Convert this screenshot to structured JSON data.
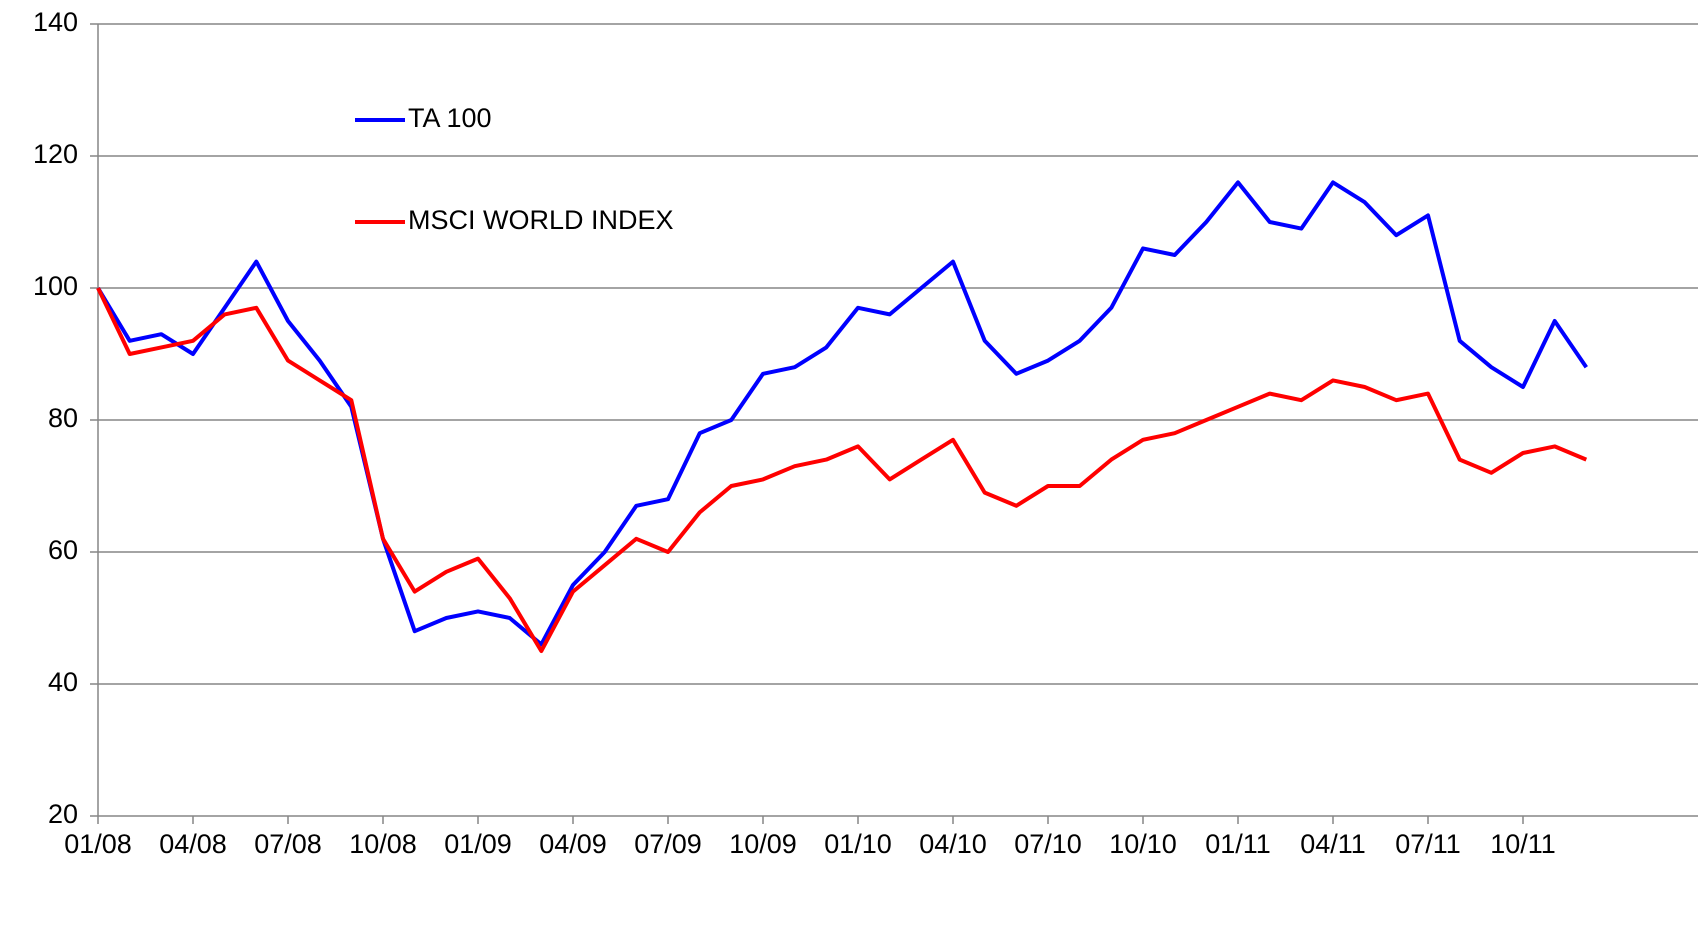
{
  "chart_data": {
    "type": "line",
    "x": [
      "01/08",
      "02/08",
      "03/08",
      "04/08",
      "05/08",
      "06/08",
      "07/08",
      "08/08",
      "09/08",
      "10/08",
      "11/08",
      "12/08",
      "01/09",
      "02/09",
      "03/09",
      "04/09",
      "05/09",
      "06/09",
      "07/09",
      "08/09",
      "09/09",
      "10/09",
      "11/09",
      "12/09",
      "01/10",
      "02/10",
      "03/10",
      "04/10",
      "05/10",
      "06/10",
      "07/10",
      "08/10",
      "09/10",
      "10/10",
      "11/10",
      "12/10",
      "01/11",
      "02/11",
      "03/11",
      "04/11",
      "05/11",
      "06/11",
      "07/11",
      "08/11",
      "09/11",
      "10/11",
      "11/11",
      "12/11"
    ],
    "series": [
      {
        "name": "TA 100",
        "color": "#0000ff",
        "values": [
          100,
          92,
          93,
          90,
          97,
          104,
          95,
          89,
          82,
          62,
          48,
          50,
          51,
          50,
          46,
          55,
          60,
          67,
          68,
          78,
          80,
          87,
          88,
          91,
          97,
          96,
          100,
          104,
          92,
          87,
          89,
          92,
          97,
          106,
          105,
          110,
          116,
          110,
          109,
          116,
          113,
          108,
          111,
          92,
          88,
          85,
          95,
          88
        ]
      },
      {
        "name": "MSCI WORLD INDEX",
        "color": "#ff0000",
        "values": [
          100,
          90,
          91,
          92,
          96,
          97,
          89,
          86,
          83,
          62,
          54,
          57,
          59,
          53,
          45,
          54,
          58,
          62,
          60,
          66,
          70,
          71,
          73,
          74,
          76,
          71,
          74,
          77,
          69,
          67,
          70,
          70,
          74,
          77,
          78,
          80,
          82,
          84,
          83,
          86,
          85,
          83,
          84,
          74,
          72,
          75,
          76,
          74
        ]
      }
    ],
    "xlim": [
      "01/08",
      "10/11"
    ],
    "xticks": [
      "01/08",
      "04/08",
      "07/08",
      "10/08",
      "01/09",
      "04/09",
      "07/09",
      "10/09",
      "01/10",
      "04/10",
      "07/10",
      "10/10",
      "01/11",
      "04/11",
      "07/11",
      "10/11"
    ],
    "ylim": [
      20,
      140
    ],
    "yticks": [
      20,
      40,
      60,
      80,
      100,
      120,
      140
    ],
    "grid": true
  }
}
